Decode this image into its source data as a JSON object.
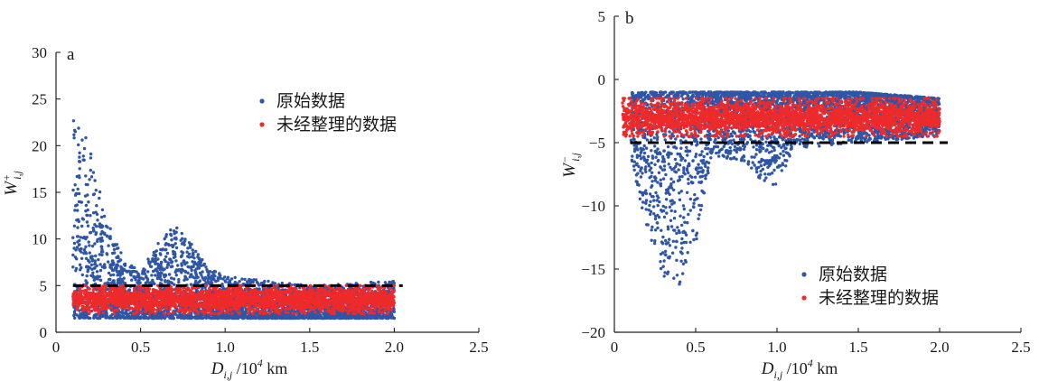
{
  "chart_data": [
    {
      "type": "scatter",
      "panel": "a",
      "xlabel_main": "D",
      "xlabel_sub": "i,j",
      "xlabel_unit": "/10",
      "xlabel_exp": "4",
      "xlabel_tail": " km",
      "ylabel_main": "W",
      "ylabel_sup": "+",
      "ylabel_sub": "i,j",
      "xlim": [
        0,
        2.5
      ],
      "ylim": [
        0,
        30
      ],
      "xticks": [
        "0",
        "0.5",
        "1.0",
        "1.5",
        "2.0",
        "2.5"
      ],
      "xtick_values": [
        0,
        0.5,
        1.0,
        1.5,
        2.0,
        2.5
      ],
      "yticks": [
        "0",
        "5",
        "10",
        "15",
        "20",
        "25",
        "30"
      ],
      "ytick_values": [
        0,
        5,
        10,
        15,
        20,
        25,
        30
      ],
      "threshold": 5,
      "legend_position": "top-right",
      "series": [
        {
          "name": "原始数据",
          "color": "#2f56a6",
          "envelope": [
            {
              "x": 0.1,
              "low": 1.5,
              "high": 24.5
            },
            {
              "x": 0.2,
              "low": 1.5,
              "high": 20
            },
            {
              "x": 0.3,
              "low": 1.5,
              "high": 12
            },
            {
              "x": 0.4,
              "low": 1.5,
              "high": 8
            },
            {
              "x": 0.5,
              "low": 1.5,
              "high": 6.5
            },
            {
              "x": 0.6,
              "low": 1.5,
              "high": 9.5
            },
            {
              "x": 0.7,
              "low": 1.5,
              "high": 11.5
            },
            {
              "x": 0.8,
              "low": 1.5,
              "high": 9.5
            },
            {
              "x": 0.9,
              "low": 1.5,
              "high": 7
            },
            {
              "x": 1.0,
              "low": 1.5,
              "high": 6
            },
            {
              "x": 1.5,
              "low": 1.5,
              "high": 5
            },
            {
              "x": 2.0,
              "low": 1.5,
              "high": 5.5
            }
          ]
        },
        {
          "name": "未经整理的数据",
          "color": "#ee2a2a",
          "envelope": [
            {
              "x": 0.1,
              "low": 2,
              "high": 5
            },
            {
              "x": 1.0,
              "low": 2,
              "high": 5
            },
            {
              "x": 2.0,
              "low": 2,
              "high": 5
            }
          ]
        }
      ]
    },
    {
      "type": "scatter",
      "panel": "b",
      "xlabel_main": "D",
      "xlabel_sub": "i,j",
      "xlabel_unit": "/10",
      "xlabel_exp": "4",
      "xlabel_tail": " km",
      "ylabel_main": "W",
      "ylabel_sup": "−",
      "ylabel_sub": "i,j",
      "xlim": [
        0,
        2.5
      ],
      "ylim": [
        -20,
        5
      ],
      "xticks": [
        "0",
        "0.5",
        "1.0",
        "1.5",
        "2.0",
        "2.5"
      ],
      "xtick_values": [
        0,
        0.5,
        1.0,
        1.5,
        2.0,
        2.5
      ],
      "yticks": [
        "−20",
        "−15",
        "−10",
        "−5",
        "0",
        "5"
      ],
      "ytick_values": [
        -20,
        -15,
        -10,
        -5,
        0,
        5
      ],
      "threshold": -5,
      "legend_position": "bottom-right",
      "series": [
        {
          "name": "原始数据",
          "color": "#2f56a6",
          "envelope": [
            {
              "x": 0.1,
              "low": -6,
              "high": -1
            },
            {
              "x": 0.2,
              "low": -12,
              "high": -1
            },
            {
              "x": 0.3,
              "low": -15.5,
              "high": -1
            },
            {
              "x": 0.4,
              "low": -16.5,
              "high": -1
            },
            {
              "x": 0.5,
              "low": -13,
              "high": -1
            },
            {
              "x": 0.6,
              "low": -6,
              "high": -1
            },
            {
              "x": 0.8,
              "low": -6.5,
              "high": -1
            },
            {
              "x": 0.9,
              "low": -8,
              "high": -1
            },
            {
              "x": 1.0,
              "low": -8.5,
              "high": -1
            },
            {
              "x": 1.1,
              "low": -5.5,
              "high": -1
            },
            {
              "x": 1.5,
              "low": -5,
              "high": -1
            },
            {
              "x": 2.0,
              "low": -4.5,
              "high": -1.5
            }
          ]
        },
        {
          "name": "未经整理的数据",
          "color": "#ee2a2a",
          "envelope": [
            {
              "x": 0.05,
              "low": -4.5,
              "high": -1.5
            },
            {
              "x": 1.0,
              "low": -4.5,
              "high": -1.5
            },
            {
              "x": 2.0,
              "low": -4.5,
              "high": -1.5
            }
          ]
        }
      ]
    }
  ]
}
